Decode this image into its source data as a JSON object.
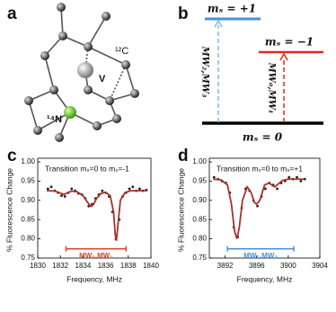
{
  "panel_a": {
    "label": "a",
    "atoms": {
      "v": "V",
      "c": "¹²C",
      "n": "¹⁴N"
    }
  },
  "panel_b": {
    "label": "b",
    "levels": [
      "mₛ = +1",
      "mₛ = −1",
      "mₛ = 0"
    ],
    "transitions": [
      "MW₂,MW₃",
      "MW₀,MW₁"
    ]
  },
  "chart_data": [
    {
      "type": "line",
      "panel": "c",
      "annotation": "Transition mₛ=0 to mₛ=-1",
      "x_label": "Frequency, MHz",
      "y_label": "% Fluorescence Change",
      "xlim": [
        1830,
        1840
      ],
      "xticks": [
        1830,
        1832,
        1834,
        1836,
        1838,
        1840
      ],
      "ylim": [
        0.75,
        1.0
      ],
      "yticks": [
        {
          "value": 0.75,
          "label": "0.75"
        },
        {
          "value": 0.8,
          "label": "0.80"
        },
        {
          "value": 0.85,
          "label": "0.85"
        },
        {
          "value": 0.9,
          "label": "0.90"
        },
        {
          "value": 0.95,
          "label": "0.95"
        },
        {
          "value": 1.0,
          "label": "1.00"
        }
      ],
      "series": [
        {
          "type": "scatter",
          "color": "#222222",
          "x": [
            1830.9,
            1831.2,
            1831.5,
            1831.8,
            1832.1,
            1832.4,
            1832.7,
            1833.0,
            1833.3,
            1833.6,
            1833.9,
            1834.2,
            1834.5,
            1834.8,
            1835.1,
            1835.4,
            1835.7,
            1836.0,
            1836.3,
            1836.6,
            1836.9,
            1837.2,
            1837.5,
            1837.8,
            1838.1,
            1838.4,
            1838.7,
            1839.0,
            1839.3,
            1839.6
          ],
          "values": [
            0.93,
            0.935,
            0.925,
            0.92,
            0.912,
            0.91,
            0.92,
            0.93,
            0.925,
            0.918,
            0.915,
            0.905,
            0.885,
            0.89,
            0.905,
            0.915,
            0.925,
            0.92,
            0.91,
            0.87,
            0.8,
            0.85,
            0.91,
            0.92,
            0.93,
            0.935,
            0.925,
            0.93,
            0.925,
            0.927
          ]
        },
        {
          "type": "line",
          "color": "#a8322a",
          "x": [
            1830.8,
            1831.5,
            1832,
            1832.3,
            1832.6,
            1833,
            1833.5,
            1834,
            1834.4,
            1834.7,
            1834.9,
            1835.2,
            1835.6,
            1836,
            1836.4,
            1836.7,
            1836.85,
            1836.95,
            1837.1,
            1837.3,
            1837.7,
            1838.2,
            1839,
            1839.7
          ],
          "values": [
            0.925,
            0.924,
            0.919,
            0.915,
            0.919,
            0.924,
            0.922,
            0.912,
            0.895,
            0.884,
            0.888,
            0.905,
            0.918,
            0.921,
            0.912,
            0.87,
            0.81,
            0.795,
            0.84,
            0.9,
            0.92,
            0.925,
            0.925,
            0.925
          ]
        }
      ],
      "span": {
        "x": [
          1832.5,
          1837.8
        ],
        "y": 0.774,
        "label": "MW₀,MW₁",
        "color": "#e8402a"
      }
    },
    {
      "type": "line",
      "panel": "d",
      "annotation": "Transition mₛ=0 to mₛ=+1",
      "x_label": "Frequency, MHz",
      "y_label": "% Fluorescence Change",
      "xlim": [
        3890,
        3904
      ],
      "xticks": [
        3892,
        3896,
        3900,
        3904
      ],
      "ylim": [
        0.75,
        1.0
      ],
      "yticks": [
        {
          "value": 0.75,
          "label": "0.75"
        },
        {
          "value": 0.8,
          "label": "0.80"
        },
        {
          "value": 0.85,
          "label": "0.85"
        },
        {
          "value": 0.9,
          "label": "0.90"
        },
        {
          "value": 0.95,
          "label": "0.95"
        },
        {
          "value": 1.0,
          "label": "1.00"
        }
      ],
      "series": [
        {
          "type": "scatter",
          "color": "#222222",
          "x": [
            3890.6,
            3891.1,
            3891.6,
            3892.1,
            3892.6,
            3893.1,
            3893.6,
            3894.1,
            3894.6,
            3895.1,
            3895.6,
            3896.1,
            3896.6,
            3897.1,
            3897.6,
            3898.1,
            3898.6,
            3899.1,
            3899.6,
            3900.1,
            3900.6,
            3901.1,
            3901.6,
            3902.1
          ],
          "values": [
            0.96,
            0.955,
            0.95,
            0.945,
            0.92,
            0.83,
            0.805,
            0.88,
            0.93,
            0.925,
            0.9,
            0.885,
            0.91,
            0.93,
            0.945,
            0.94,
            0.93,
            0.945,
            0.95,
            0.96,
            0.955,
            0.96,
            0.95,
            0.955
          ]
        },
        {
          "type": "line",
          "color": "#a8322a",
          "x": [
            3890.5,
            3891.5,
            3892.3,
            3892.8,
            3893.2,
            3893.5,
            3893.8,
            3894.2,
            3894.8,
            3895.3,
            3895.7,
            3896,
            3896.4,
            3897,
            3897.6,
            3898,
            3898.3,
            3898.7,
            3899.3,
            3900,
            3901,
            3902
          ],
          "values": [
            0.955,
            0.953,
            0.94,
            0.89,
            0.82,
            0.8,
            0.83,
            0.9,
            0.935,
            0.92,
            0.895,
            0.89,
            0.9,
            0.94,
            0.945,
            0.938,
            0.935,
            0.942,
            0.952,
            0.955,
            0.955,
            0.955
          ]
        }
      ],
      "span": {
        "x": [
          3892.3,
          3900.7
        ],
        "y": 0.774,
        "label": "MW₂,MW₃",
        "color": "#4a90d9"
      }
    }
  ]
}
